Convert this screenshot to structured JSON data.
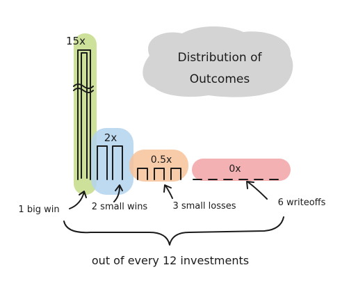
{
  "chart_data": {
    "type": "bar",
    "title_lines": [
      "Distribution of",
      "Outcomes"
    ],
    "categories": [
      "1 big win",
      "2 small wins",
      "3 small losses",
      "6 writeoffs"
    ],
    "multiples": [
      "15x",
      "2x",
      "0.5x",
      "0x"
    ],
    "values": [
      15,
      2,
      0.5,
      0
    ],
    "counts": [
      1,
      2,
      3,
      6
    ],
    "footer": "out of every 12 investments",
    "colors": [
      "#c5dc8a",
      "#b3d4ee",
      "#f7c29a",
      "#f2a3a6"
    ],
    "title_cloud_color": "#d4d4d4"
  }
}
